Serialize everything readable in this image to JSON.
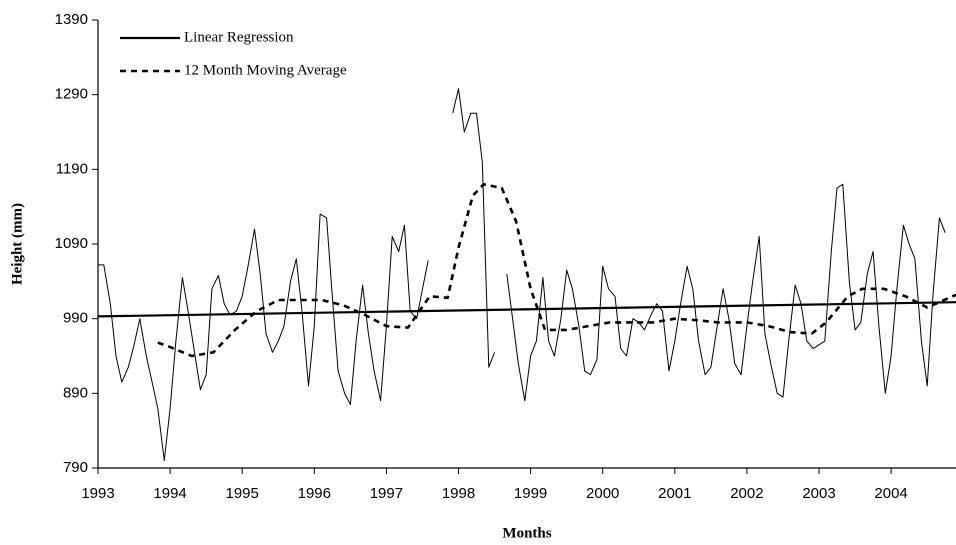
{
  "chart_data": {
    "type": "line",
    "y_label": "Height (mm)",
    "x_label": "Months",
    "xlim": [
      1993,
      2004.9
    ],
    "xticks": [
      1993,
      1994,
      1995,
      1996,
      1997,
      1998,
      1999,
      2000,
      2001,
      2002,
      2003,
      2004
    ],
    "ylim": [
      790,
      1390
    ],
    "yticks": [
      790,
      890,
      990,
      1090,
      1190,
      1290,
      1390
    ],
    "legend": "top-left",
    "grid": false,
    "series": [
      {
        "color": "#000000",
        "line_width": 1,
        "dashed": false,
        "x": [
          1993.0,
          1993.08,
          1993.17,
          1993.25,
          1993.33,
          1993.42,
          1993.5,
          1993.58,
          1993.67,
          1993.75,
          1993.83,
          1993.92,
          1994.0,
          1994.08,
          1994.17,
          1994.25,
          1994.33,
          1994.42,
          1994.5,
          1994.58,
          1994.67,
          1994.75,
          1994.83,
          1994.92,
          1995.0,
          1995.08,
          1995.17,
          1995.25,
          1995.33,
          1995.42,
          1995.5,
          1995.58,
          1995.67,
          1995.75,
          1995.83,
          1995.92,
          1996.0,
          1996.08,
          1996.17,
          1996.25,
          1996.33,
          1996.42,
          1996.5,
          1996.58,
          1996.67,
          1996.75,
          1996.83,
          1996.92,
          1997.0,
          1997.08,
          1997.17,
          1997.25,
          1997.33,
          1997.42,
          1997.5,
          1997.58,
          1997.67,
          1997.75,
          1997.83,
          1997.92,
          1998.0,
          1998.08,
          1998.17,
          1998.25,
          1998.33,
          1998.42,
          1998.5,
          1998.58,
          1998.67,
          1998.75,
          1998.83,
          1998.92,
          1999.0,
          1999.08,
          1999.17,
          1999.25,
          1999.33,
          1999.42,
          1999.5,
          1999.58,
          1999.67,
          1999.75,
          1999.83,
          1999.92,
          2000.0,
          2000.08,
          2000.17,
          2000.25,
          2000.33,
          2000.42,
          2000.5,
          2000.58,
          2000.67,
          2000.75,
          2000.83,
          2000.92,
          2001.0,
          2001.08,
          2001.17,
          2001.25,
          2001.33,
          2001.42,
          2001.5,
          2001.58,
          2001.67,
          2001.75,
          2001.83,
          2001.92,
          2002.0,
          2002.08,
          2002.17,
          2002.25,
          2002.33,
          2002.42,
          2002.5,
          2002.58,
          2002.67,
          2002.75,
          2002.83,
          2002.92,
          2003.0,
          2003.08,
          2003.17,
          2003.25,
          2003.33,
          2003.42,
          2003.5,
          2003.58,
          2003.67,
          2003.75,
          2003.83,
          2003.92,
          2004.0,
          2004.08,
          2004.17,
          2004.25,
          2004.33,
          2004.42,
          2004.5,
          2004.58,
          2004.67,
          2004.75
        ],
        "values": [
          1062,
          1062,
          1010,
          940,
          905,
          925,
          955,
          990,
          940,
          905,
          870,
          800,
          870,
          960,
          1045,
          1000,
          950,
          895,
          915,
          1030,
          1048,
          1010,
          995,
          1000,
          1020,
          1060,
          1110,
          1050,
          970,
          945,
          960,
          980,
          1040,
          1070,
          1000,
          900,
          980,
          1130,
          1125,
          1020,
          920,
          890,
          875,
          960,
          1035,
          970,
          920,
          880,
          980,
          1100,
          1080,
          1115,
          1000,
          990,
          1030,
          1068,
          null,
          null,
          null,
          1265,
          1298,
          1240,
          1265,
          1265,
          1200,
          925,
          945,
          null,
          1050,
          990,
          930,
          880,
          940,
          960,
          1045,
          960,
          940,
          990,
          1055,
          1030,
          980,
          920,
          915,
          935,
          1060,
          1030,
          1020,
          950,
          940,
          990,
          985,
          975,
          995,
          1010,
          1000,
          920,
          960,
          1010,
          1060,
          1030,
          960,
          915,
          925,
          975,
          1030,
          990,
          930,
          915,
          980,
          1040,
          1100,
          970,
          930,
          890,
          885,
          960,
          1035,
          1010,
          960,
          950,
          955,
          960,
          1080,
          1165,
          1170,
          1040,
          975,
          985,
          1050,
          1080,
          980,
          890,
          940,
          1030,
          1115,
          1090,
          1070,
          960,
          900,
          1020,
          1125,
          1105
        ]
      },
      {
        "name": "Linear Regression",
        "color": "#000000",
        "line_width": 2.2,
        "dashed": false,
        "x": [
          1993,
          2004.9
        ],
        "values": [
          993,
          1012
        ]
      },
      {
        "name": "12 Month Moving Average",
        "color": "#000000",
        "line_width": 2.6,
        "dashed": true,
        "x": [
          1993.83,
          1994.0,
          1994.3,
          1994.6,
          1994.9,
          1995.2,
          1995.5,
          1995.8,
          1996.1,
          1996.4,
          1996.7,
          1997.0,
          1997.3,
          1997.6,
          1997.85,
          1998.0,
          1998.2,
          1998.35,
          1998.6,
          1998.8,
          1999.0,
          1999.2,
          1999.5,
          1999.8,
          2000.1,
          2000.4,
          2000.7,
          2001.0,
          2001.3,
          2001.6,
          2002.0,
          2002.3,
          2002.6,
          2002.9,
          2003.1,
          2003.4,
          2003.6,
          2003.9,
          2004.2,
          2004.5,
          2004.9
        ],
        "values": [
          958,
          952,
          940,
          945,
          975,
          1000,
          1015,
          1015,
          1015,
          1008,
          995,
          980,
          978,
          1020,
          1018,
          1085,
          1155,
          1170,
          1165,
          1120,
          1030,
          975,
          975,
          980,
          985,
          985,
          985,
          990,
          988,
          985,
          985,
          980,
          972,
          970,
          985,
          1020,
          1030,
          1030,
          1020,
          1005,
          1022
        ]
      }
    ]
  }
}
